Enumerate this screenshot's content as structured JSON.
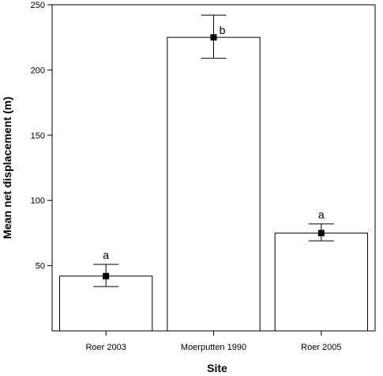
{
  "chart_data": {
    "type": "bar",
    "title": "",
    "xlabel": "Site",
    "ylabel": "Mean net displacement (m)",
    "ylim": [
      0,
      250
    ],
    "yticks": [
      50,
      100,
      150,
      200,
      250
    ],
    "grid": false,
    "categories": [
      "Roer 2003",
      "Moerputten 1990",
      "Roer 2005"
    ],
    "values": [
      42,
      225,
      75
    ],
    "means": [
      42,
      225,
      75
    ],
    "error_low": [
      34,
      209,
      69
    ],
    "error_high": [
      51,
      242,
      82
    ],
    "significance_labels": [
      "a",
      "b",
      "a"
    ]
  }
}
